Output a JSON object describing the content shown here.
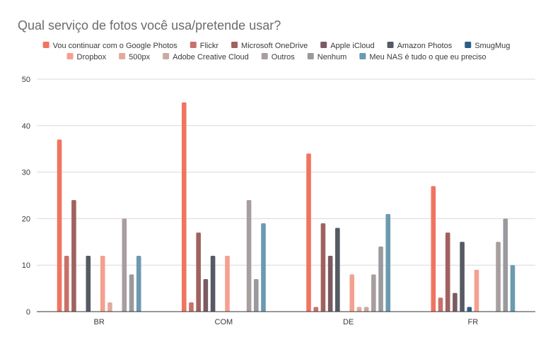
{
  "chart_data": {
    "type": "bar",
    "title": "Qual serviço de fotos você usa/pretende usar?",
    "categories": [
      "BR",
      "COM",
      "DE",
      "FR"
    ],
    "ylim": [
      0,
      50
    ],
    "yticks": [
      0,
      10,
      20,
      30,
      40,
      50
    ],
    "grid": true,
    "legend_position": "top",
    "series": [
      {
        "name": "Vou continuar com o Google Photos",
        "color": "#f0745f",
        "values": [
          37,
          45,
          34,
          27
        ]
      },
      {
        "name": "Flickr",
        "color": "#c8706a",
        "values": [
          12,
          2,
          1,
          3
        ]
      },
      {
        "name": "Microsoft OneDrive",
        "color": "#a0625f",
        "values": [
          24,
          17,
          19,
          17
        ]
      },
      {
        "name": "Apple iCloud",
        "color": "#7b5a62",
        "values": [
          0,
          7,
          12,
          4
        ]
      },
      {
        "name": "Amazon Photos",
        "color": "#555a63",
        "values": [
          12,
          12,
          18,
          15
        ]
      },
      {
        "name": "SmugMug",
        "color": "#2a5f86",
        "values": [
          0,
          0,
          0,
          1
        ]
      },
      {
        "name": "Dropbox",
        "color": "#f4a090",
        "values": [
          12,
          12,
          8,
          9
        ]
      },
      {
        "name": "500px",
        "color": "#e3a99e",
        "values": [
          2,
          0,
          1,
          0
        ]
      },
      {
        "name": "Adobe Creative Cloud",
        "color": "#c9aaa3",
        "values": [
          0,
          0,
          1,
          0
        ]
      },
      {
        "name": "Outros",
        "color": "#a89e9f",
        "values": [
          20,
          24,
          8,
          15
        ]
      },
      {
        "name": "Nenhum",
        "color": "#9a9a9e",
        "values": [
          8,
          7,
          14,
          20
        ]
      },
      {
        "name": "Meu NAS é tudo o que eu preciso",
        "color": "#6b9ab1",
        "values": [
          12,
          19,
          21,
          10
        ]
      }
    ]
  }
}
